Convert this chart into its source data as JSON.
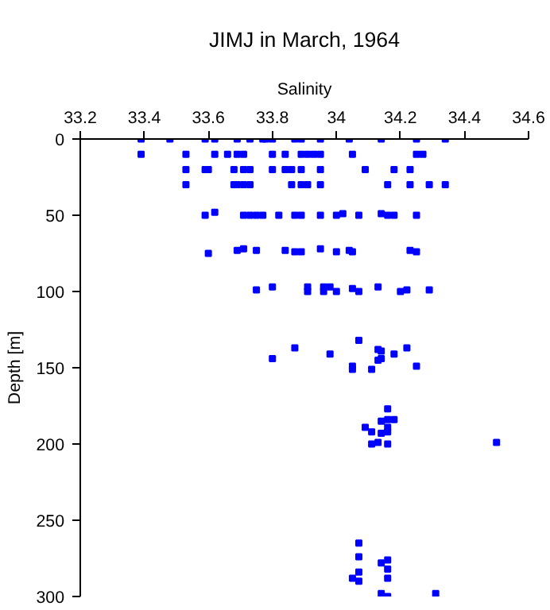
{
  "chart_data": {
    "type": "scatter",
    "title": "JIMJ in March, 1964",
    "xlabel": "Salinity",
    "ylabel": "Depth [m]",
    "xlim": [
      33.2,
      34.6
    ],
    "xticks": [
      33.2,
      33.4,
      33.6,
      33.8,
      34,
      34.2,
      34.4,
      34.6
    ],
    "ylim": [
      300,
      0
    ],
    "yticks": [
      0,
      50,
      100,
      150,
      200,
      250,
      300
    ],
    "grid": false,
    "marker": "square",
    "series": [
      {
        "color": "#0000ff",
        "x": [
          33.39,
          33.48,
          33.59,
          33.62,
          33.69,
          33.73,
          33.77,
          33.78,
          33.8,
          33.87,
          33.89,
          33.95,
          34.04,
          34.14,
          34.25,
          34.34,
          33.39,
          33.53,
          33.62,
          33.66,
          33.69,
          33.71,
          33.8,
          33.84,
          33.89,
          33.91,
          33.93,
          33.95,
          34.05,
          34.25,
          34.27,
          33.53,
          33.59,
          33.6,
          33.68,
          33.71,
          33.73,
          33.8,
          33.84,
          33.86,
          33.89,
          33.95,
          34.09,
          34.18,
          34.23,
          33.53,
          33.68,
          33.69,
          33.71,
          33.73,
          33.86,
          33.89,
          33.91,
          33.95,
          34.16,
          34.23,
          34.29,
          34.34,
          33.59,
          33.62,
          33.71,
          33.73,
          33.75,
          33.77,
          33.82,
          33.87,
          33.89,
          33.95,
          34.0,
          34.02,
          34.07,
          34.14,
          34.16,
          34.18,
          34.25,
          33.6,
          33.69,
          33.71,
          33.75,
          33.84,
          33.87,
          33.89,
          33.95,
          34.0,
          34.04,
          34.05,
          34.23,
          34.25,
          33.75,
          33.8,
          33.91,
          33.91,
          33.96,
          33.96,
          33.98,
          34.0,
          34.05,
          34.07,
          34.13,
          34.2,
          34.22,
          34.29,
          33.8,
          33.87,
          33.98,
          34.07,
          34.05,
          34.05,
          34.11,
          34.13,
          34.13,
          34.14,
          34.14,
          34.18,
          34.22,
          34.25,
          34.09,
          34.11,
          34.11,
          34.13,
          34.14,
          34.14,
          34.16,
          34.16,
          34.16,
          34.16,
          34.16,
          34.18,
          34.5,
          34.07,
          34.07,
          34.07,
          34.05,
          34.07,
          34.14,
          34.14,
          34.16,
          34.16,
          34.16,
          34.16,
          34.31
        ],
        "values": [
          0,
          0,
          0,
          0,
          0,
          0,
          0,
          0,
          0,
          0,
          0,
          0,
          0,
          0,
          0,
          0,
          10,
          10,
          10,
          10,
          10,
          10,
          10,
          10,
          10,
          10,
          10,
          10,
          10,
          10,
          10,
          20,
          20,
          20,
          20,
          20,
          20,
          20,
          20,
          20,
          20,
          20,
          20,
          20,
          20,
          30,
          30,
          30,
          30,
          30,
          30,
          30,
          30,
          30,
          30,
          30,
          30,
          30,
          50,
          48,
          50,
          50,
          50,
          50,
          50,
          50,
          50,
          50,
          50,
          49,
          50,
          49,
          50,
          50,
          50,
          75,
          73,
          72,
          73,
          73,
          74,
          74,
          72,
          74,
          73,
          74,
          73,
          74,
          99,
          97,
          97,
          100,
          97,
          100,
          97,
          100,
          98,
          100,
          97,
          100,
          99,
          99,
          144,
          137,
          141,
          132,
          149,
          151,
          151,
          138,
          145,
          139,
          144,
          141,
          137,
          149,
          189,
          192,
          200,
          199,
          185,
          193,
          177,
          184,
          189,
          192,
          200,
          184,
          199,
          265,
          274,
          284,
          288,
          290,
          278,
          298,
          276,
          282,
          288,
          300,
          298
        ]
      }
    ]
  }
}
